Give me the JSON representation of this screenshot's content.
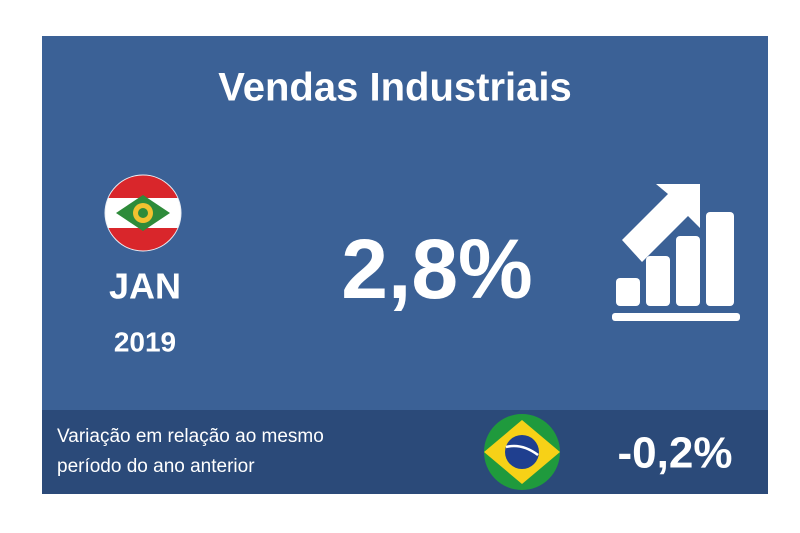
{
  "card": {
    "title": "Vendas Industriais",
    "month": "JAN",
    "year": "2019",
    "main_value": "2,8%",
    "footer": {
      "description_line1": "Variação em relação ao mesmo",
      "description_line2": "período do ano anterior",
      "brazil_value": "-0,2%"
    }
  }
}
